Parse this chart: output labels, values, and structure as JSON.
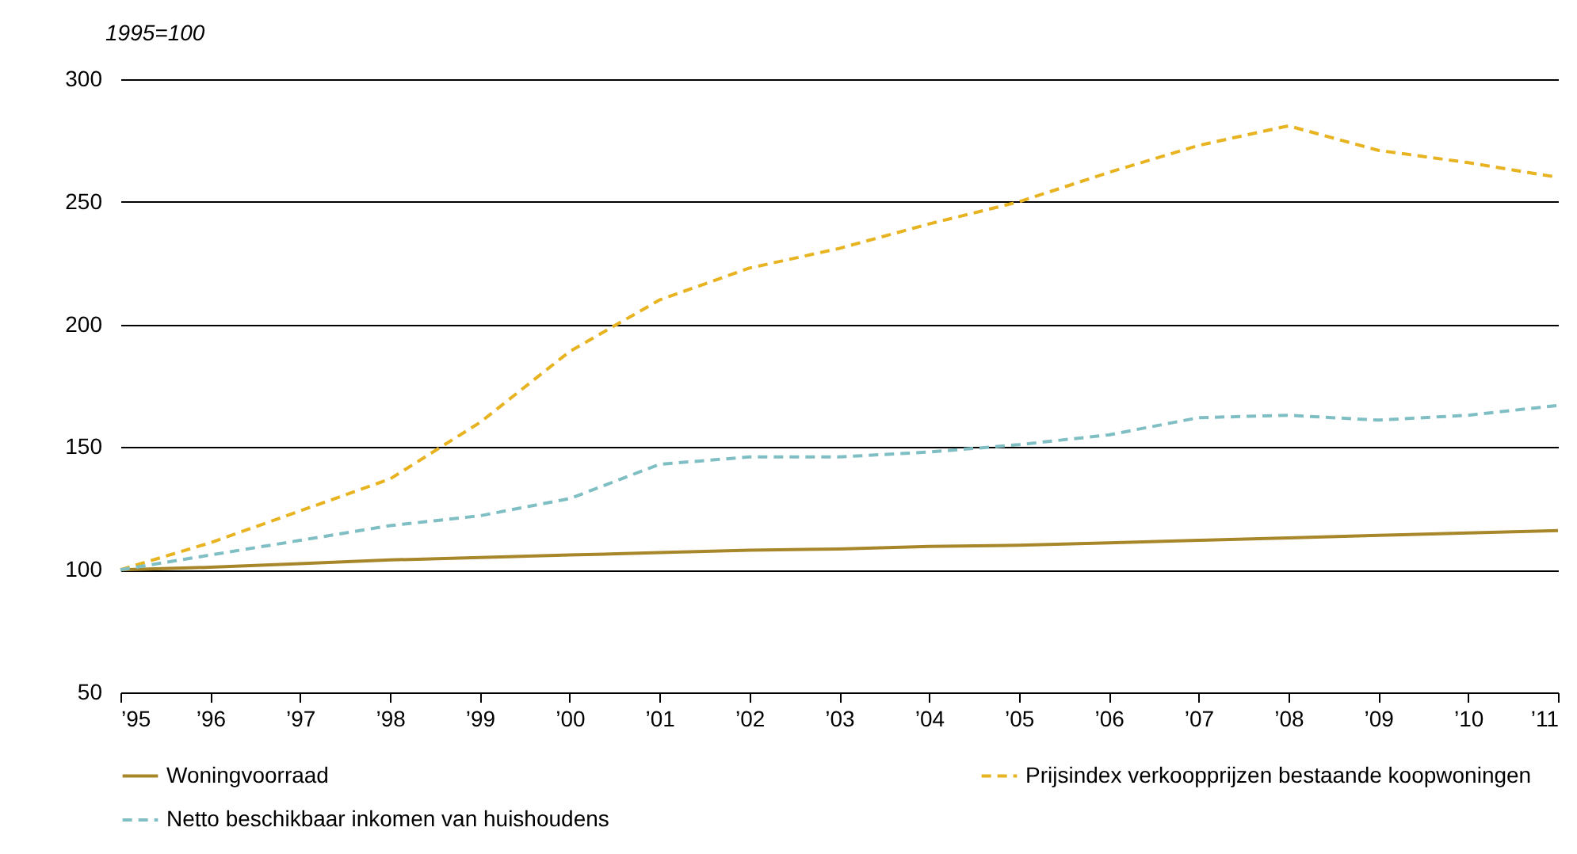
{
  "chart_data": {
    "type": "line",
    "ylabel": "1995=100",
    "x": [
      1995,
      1996,
      1997,
      1998,
      1999,
      2000,
      2001,
      2002,
      2003,
      2004,
      2005,
      2006,
      2007,
      2008,
      2009,
      2010,
      2011
    ],
    "xlim": [
      1995,
      2011
    ],
    "xticks": [
      {
        "value": 1995,
        "label": "’95"
      },
      {
        "value": 1996,
        "label": "’96"
      },
      {
        "value": 1997,
        "label": "’97"
      },
      {
        "value": 1998,
        "label": "’98"
      },
      {
        "value": 1999,
        "label": "’99"
      },
      {
        "value": 2000,
        "label": "’00"
      },
      {
        "value": 2001,
        "label": "’01"
      },
      {
        "value": 2002,
        "label": "’02"
      },
      {
        "value": 2003,
        "label": "’03"
      },
      {
        "value": 2004,
        "label": "’04"
      },
      {
        "value": 2005,
        "label": "’05"
      },
      {
        "value": 2006,
        "label": "’06"
      },
      {
        "value": 2007,
        "label": "’07"
      },
      {
        "value": 2008,
        "label": "’08"
      },
      {
        "value": 2009,
        "label": "’09"
      },
      {
        "value": 2010,
        "label": "’10"
      },
      {
        "value": 2011,
        "label": "’11"
      }
    ],
    "ylim": [
      50,
      300
    ],
    "yticks": [
      50,
      100,
      150,
      200,
      250,
      300
    ],
    "grid": "y",
    "legend": "bottom",
    "series": [
      {
        "name": "Woningvoorraad",
        "color": "#a8862a",
        "line_style": "solid",
        "values": [
          100,
          101,
          102.5,
          104,
          105,
          106,
          107,
          108,
          108.5,
          109.5,
          110,
          111,
          112,
          113,
          114,
          115,
          116
        ]
      },
      {
        "name": "Prijsindex verkoopprijzen bestaande koopwoningen",
        "color": "#e8b321",
        "line_style": "dashed",
        "values": [
          100,
          111,
          124,
          137,
          160,
          189,
          210,
          223,
          231,
          241,
          250,
          262,
          273,
          281,
          271,
          266,
          260
        ]
      },
      {
        "name": "Netto beschikbaar inkomen van huishoudens",
        "color": "#7fbfc4",
        "line_style": "dashed",
        "values": [
          100,
          106,
          112,
          118,
          122,
          129,
          143,
          146,
          146,
          148,
          151,
          155,
          162,
          163,
          161,
          163,
          167
        ]
      }
    ]
  }
}
